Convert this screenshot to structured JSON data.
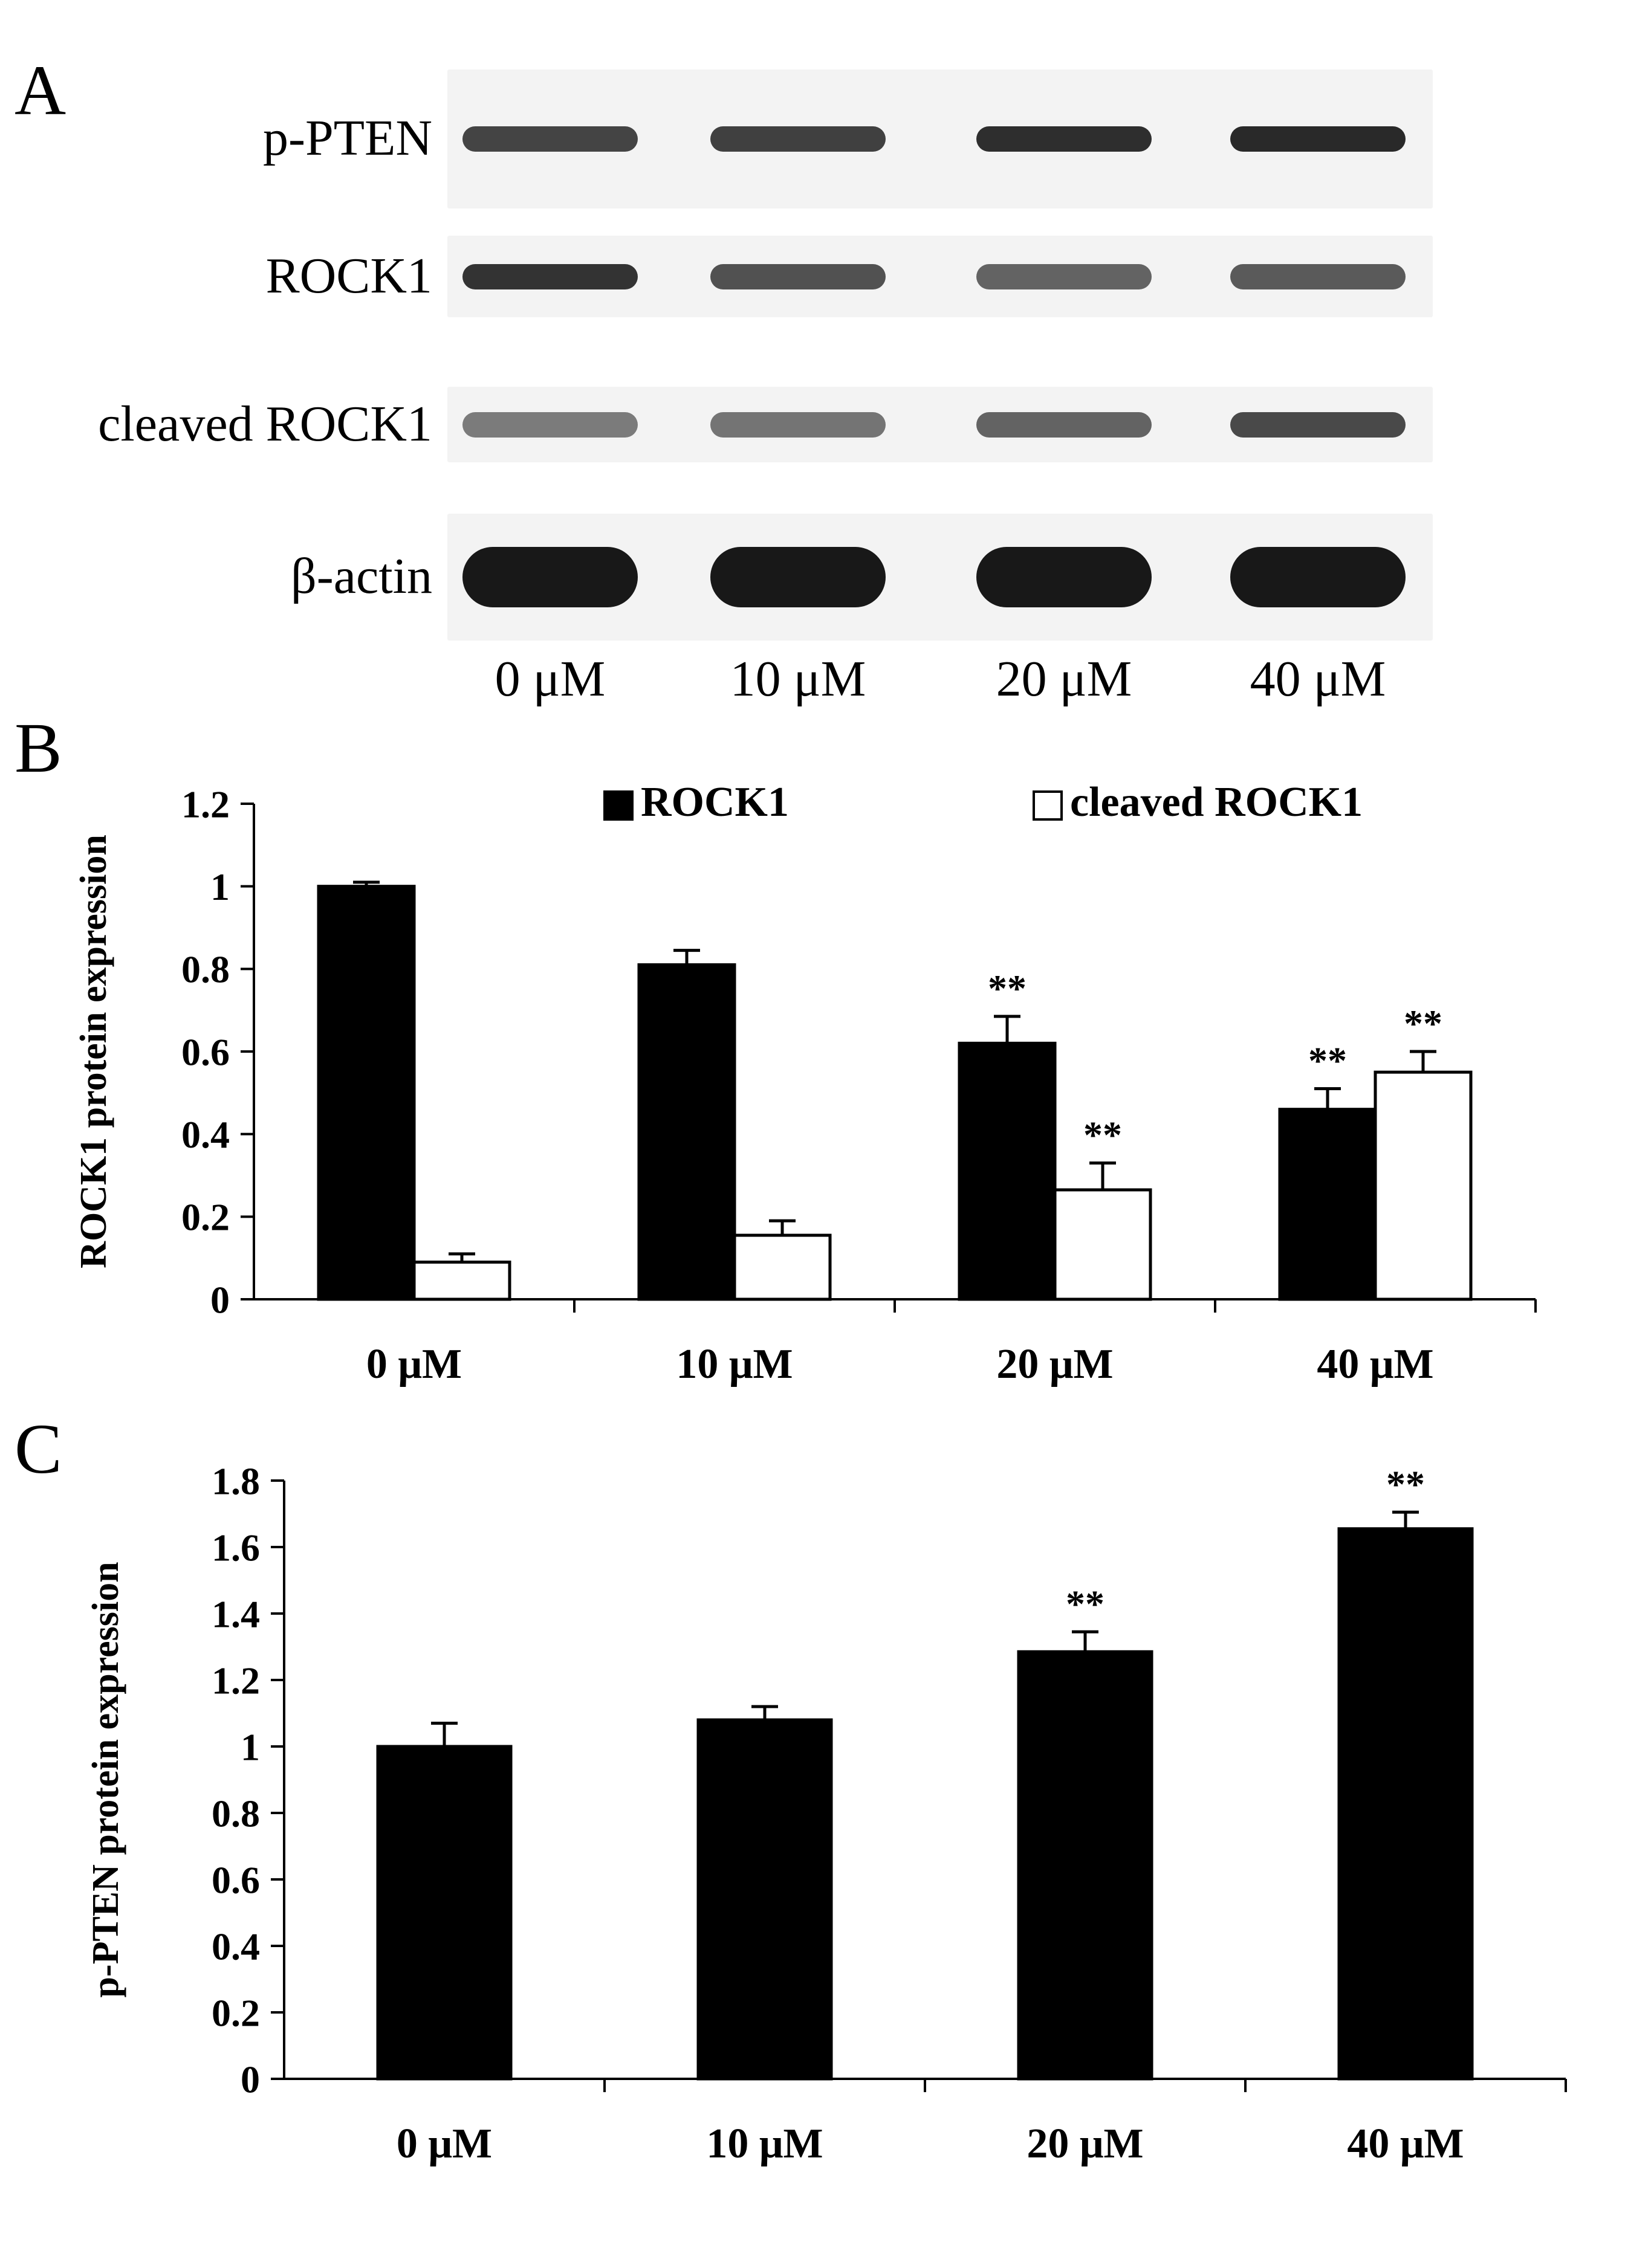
{
  "panels": {
    "a": {
      "letter": "A",
      "rows": [
        {
          "label": "p-PTEN",
          "intensity": [
            0.8,
            0.82,
            0.9,
            0.92
          ]
        },
        {
          "label": "ROCK1",
          "intensity": [
            0.88,
            0.74,
            0.66,
            0.7
          ]
        },
        {
          "label": "cleaved ROCK1",
          "intensity": [
            0.55,
            0.58,
            0.66,
            0.78
          ]
        },
        {
          "label": "β-actin",
          "intensity": [
            1.0,
            1.0,
            1.0,
            1.0
          ]
        }
      ],
      "lanes": [
        "0 μM",
        "10 μM",
        "20 μM",
        "40 μM"
      ]
    },
    "b": {
      "letter": "B"
    },
    "c": {
      "letter": "C"
    }
  },
  "chart_data": [
    {
      "type": "bar",
      "ylabel": "ROCK1 protein expression",
      "categories": [
        "0 μM",
        "10 μM",
        "20 μM",
        "40 μM"
      ],
      "ylim": [
        0,
        1.2
      ],
      "yticks": [
        "0",
        "0.2",
        "0.4",
        "0.6",
        "0.8",
        "1",
        "1.2"
      ],
      "ytick_values": [
        0,
        0.2,
        0.4,
        0.6,
        0.8,
        1,
        1.2
      ],
      "legend": "top",
      "series": [
        {
          "name": "ROCK1",
          "color": "#000000",
          "values": [
            1.0,
            0.81,
            0.62,
            0.46
          ],
          "errors": [
            0.01,
            0.035,
            0.065,
            0.05
          ],
          "marks": [
            "",
            "",
            "**",
            "**"
          ]
        },
        {
          "name": "cleaved ROCK1",
          "color": "#ffffff",
          "values": [
            0.09,
            0.155,
            0.265,
            0.55
          ],
          "errors": [
            0.02,
            0.035,
            0.065,
            0.05
          ],
          "marks": [
            "",
            "",
            "**",
            "**"
          ]
        }
      ]
    },
    {
      "type": "bar",
      "ylabel": "p-PTEN  protein expression",
      "categories": [
        "0 μM",
        "10 μM",
        "20 μM",
        "40 μM"
      ],
      "ylim": [
        0,
        1.8
      ],
      "yticks": [
        "0",
        "0.2",
        "0.4",
        "0.6",
        "0.8",
        "1",
        "1.2",
        "1.4",
        "1.6",
        "1.8"
      ],
      "ytick_values": [
        0,
        0.2,
        0.4,
        0.6,
        0.8,
        1,
        1.2,
        1.4,
        1.6,
        1.8
      ],
      "series": [
        {
          "name": "",
          "color": "#000000",
          "values": [
            1.0,
            1.08,
            1.285,
            1.655
          ],
          "errors": [
            0.07,
            0.04,
            0.06,
            0.05
          ],
          "marks": [
            "",
            "",
            "**",
            "**"
          ]
        }
      ]
    }
  ]
}
